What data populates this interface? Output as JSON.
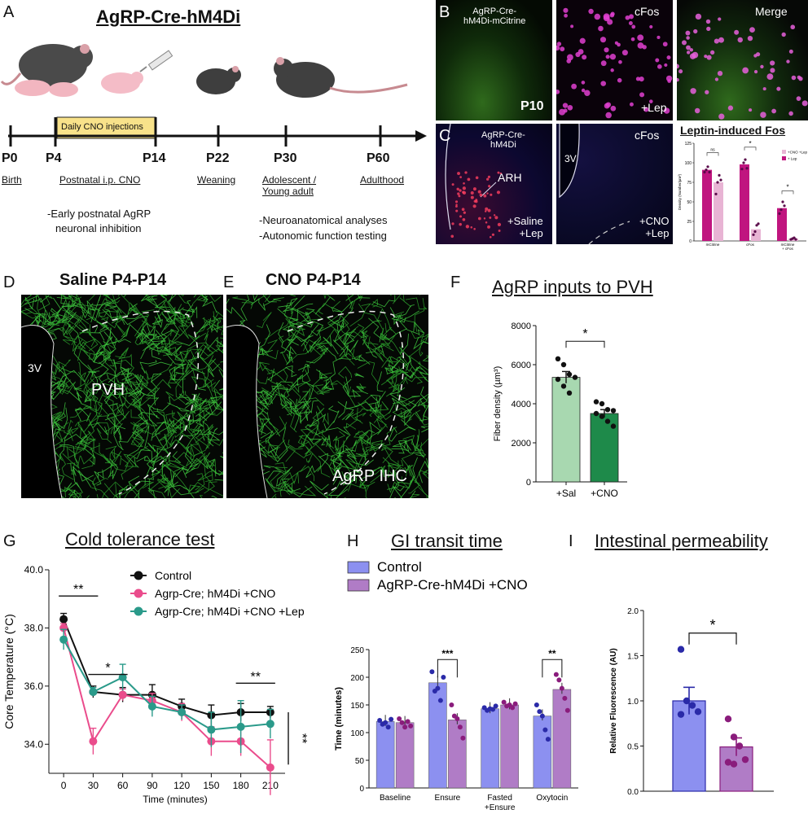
{
  "panelA": {
    "letter": "A",
    "title": "AgRP-Cre-hM4Di",
    "cno_box": "Daily CNO injections",
    "ticks": [
      {
        "label": "P0",
        "sub": "Birth"
      },
      {
        "label": "P4",
        "sub": ""
      },
      {
        "label": "P14",
        "sub": "Postnatal i.p. CNO"
      },
      {
        "label": "P22",
        "sub": "Weaning"
      },
      {
        "label": "P30",
        "sub": "Adolescent /\nYoung adult"
      },
      {
        "label": "P60",
        "sub": "Adulthood"
      }
    ],
    "note_left": [
      "-Early postnatal AgRP",
      "neuronal inhibition"
    ],
    "note_right": [
      "-Neuroanatomical analyses",
      "-Autonomic function testing"
    ]
  },
  "panelB": {
    "letter": "B",
    "img1_label": "AgRP-Cre-\nhM4Di-mCitrine",
    "img1_age": "P10",
    "img2_label": "cFos",
    "img2_tag": "+Lep",
    "img3_label": "Merge"
  },
  "panelC": {
    "letter": "C",
    "img1_label": "AgRP-Cre-\nhM4Di",
    "img1_region": "ARH",
    "img1_tag": "+Saline\n+Lep",
    "img2_label": "cFos",
    "img2_region": "3V",
    "img2_tag": "+CNO\n+Lep",
    "chart_title": "Leptin-induced Fos"
  },
  "panelD": {
    "letter": "D",
    "title": "Saline P4-P14",
    "ventricle": "3V",
    "region": "PVH"
  },
  "panelE": {
    "letter": "E",
    "title": "CNO P4-P14",
    "stain": "AgRP IHC"
  },
  "panelF": {
    "letter": "F",
    "title": "AgRP inputs to PVH"
  },
  "panelG": {
    "letter": "G",
    "title": "Cold tolerance test"
  },
  "panelH": {
    "letter": "H",
    "title": "GI transit time"
  },
  "panelI": {
    "letter": "I",
    "title": "Intestinal permeability"
  },
  "colors": {
    "control_black": "#111111",
    "hm4di_pink": "#ea4c8c",
    "lep_teal": "#2a9a8a",
    "sal_green": "#a8d8b0",
    "cno_green": "#1e8a4a",
    "control_blue": "#8c90f0",
    "cno_purple": "#b07cc6",
    "mcitrine_mag": "#c0157f",
    "cno_pink": "#e8b4d4",
    "point_purple": "#8a1c7c",
    "point_blue": "#2a2aa8"
  },
  "chart_data": [
    {
      "id": "C",
      "type": "bar",
      "title": "Leptin-induced Fos",
      "ylabel": "Density (Number/µm²)",
      "ylim": [
        0,
        125
      ],
      "yticks": [
        0,
        25,
        50,
        75,
        100,
        125
      ],
      "categories": [
        "mCitrine",
        "cFos",
        "mCitrine\n+ cFos"
      ],
      "series": [
        {
          "name": "+ Lep",
          "values": [
            91,
            98,
            42
          ],
          "points": [
            [
              88,
              91,
              95,
              88
            ],
            [
              92,
              100,
              104,
              93
            ],
            [
              35,
              40,
              50,
              45
            ]
          ]
        },
        {
          "name": "+CNO +Lep",
          "values": [
            75,
            15,
            3
          ],
          "points": [
            [
              60,
              75,
              84,
              78
            ],
            [
              8,
              12,
              20,
              22
            ],
            [
              2,
              3,
              4,
              2
            ]
          ]
        }
      ],
      "significance": [
        "ns",
        "*",
        "*"
      ]
    },
    {
      "id": "F",
      "type": "bar",
      "title": "AgRP inputs to PVH",
      "ylabel": "Fiber density (µm³)",
      "ylim": [
        0,
        8000
      ],
      "yticks": [
        0,
        2000,
        4000,
        6000,
        8000
      ],
      "categories": [
        "+Sal",
        "+CNO"
      ],
      "values": [
        5350,
        3500
      ],
      "errors": [
        300,
        200
      ],
      "points": [
        [
          6300,
          6000,
          5500,
          5350,
          5250,
          4900,
          4550
        ],
        [
          4100,
          4000,
          3700,
          3650,
          3500,
          3350,
          3100,
          2850
        ]
      ],
      "significance": "*"
    },
    {
      "id": "G",
      "type": "line",
      "title": "Cold tolerance test",
      "xlabel": "Time (minutes)",
      "ylabel": "Core Temperature (°C)",
      "x": [
        0,
        30,
        60,
        90,
        120,
        150,
        180,
        210
      ],
      "ylim": [
        33,
        40
      ],
      "yticks": [
        34.0,
        36.0,
        38.0,
        40.0
      ],
      "series": [
        {
          "name": "Control",
          "values": [
            38.3,
            35.8,
            35.7,
            35.7,
            35.3,
            35.0,
            35.1,
            35.1
          ],
          "errors": [
            0.2,
            0.2,
            0.25,
            0.35,
            0.25,
            0.35,
            0.3,
            0.2
          ]
        },
        {
          "name": "Agrp-Cre; hM4Di +CNO",
          "values": [
            38.0,
            34.1,
            35.7,
            35.5,
            35.1,
            34.1,
            34.1,
            33.2
          ],
          "errors": [
            0.15,
            0.45,
            0.2,
            0.25,
            0.3,
            0.5,
            0.5,
            0.95
          ]
        },
        {
          "name": "Agrp-Cre; hM4Di +CNO +Lep",
          "values": [
            37.6,
            35.8,
            36.3,
            35.3,
            35.1,
            34.5,
            34.6,
            34.7
          ],
          "errors": [
            0.35,
            0.15,
            0.45,
            0.35,
            0.25,
            0.6,
            0.9,
            0.5
          ]
        }
      ],
      "significance": [
        {
          "label": "**",
          "x": [
            0,
            30
          ]
        },
        {
          "label": "*",
          "x": [
            30,
            60
          ]
        },
        {
          "label": "**",
          "x": [
            180,
            210
          ]
        }
      ],
      "side_label": "**"
    },
    {
      "id": "H",
      "type": "bar",
      "title": "GI transit time",
      "ylabel": "Time (minutes)",
      "ylim": [
        0,
        250
      ],
      "yticks": [
        0,
        50,
        100,
        150,
        200,
        250
      ],
      "categories": [
        "Baseline",
        "Ensure",
        "Fasted\n+Ensure",
        "Oxytocin"
      ],
      "series": [
        {
          "name": "Control",
          "values": [
            120,
            190,
            143,
            130
          ],
          "points": [
            [
              122,
              115,
              118,
              110,
              124
            ],
            [
              210,
              175,
              180,
              158,
              200
            ],
            [
              145,
              140,
              143,
              142,
              148
            ],
            [
              150,
              138,
              130,
              105,
              88
            ]
          ]
        },
        {
          "name": "AgRP-Cre-hM4Di +CNO",
          "values": [
            118,
            123,
            150,
            178
          ],
          "points": [
            [
              125,
              118,
              110,
              120,
              112
            ],
            [
              150,
              130,
              125,
              110,
              90
            ],
            [
              155,
              148,
              150,
              145,
              152
            ],
            [
              205,
              195,
              180,
              162,
              140
            ]
          ]
        }
      ],
      "significance": [
        {
          "category": "Ensure",
          "label": "***"
        },
        {
          "category": "Oxytocin",
          "label": "**"
        }
      ]
    },
    {
      "id": "I",
      "type": "bar",
      "title": "Intestinal permeability",
      "ylabel": "Relative Fluorescence (AU)",
      "ylim": [
        0,
        2.0
      ],
      "yticks": [
        0.0,
        0.5,
        1.0,
        1.5,
        2.0
      ],
      "categories": [
        "Control",
        "AgRP-Cre-hM4Di +CNO"
      ],
      "values": [
        1.0,
        0.49
      ],
      "errors": [
        0.15,
        0.1
      ],
      "points": [
        [
          1.57,
          1.0,
          0.95,
          0.88,
          0.85
        ],
        [
          0.8,
          0.6,
          0.5,
          0.35,
          0.32,
          0.3
        ]
      ],
      "significance": "*"
    }
  ]
}
